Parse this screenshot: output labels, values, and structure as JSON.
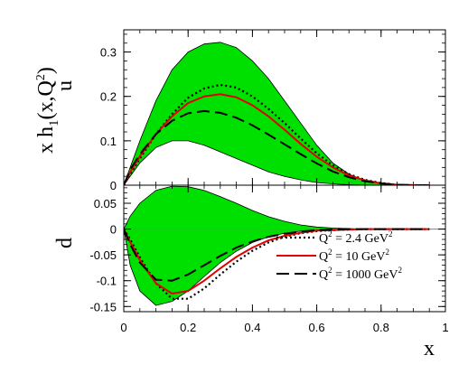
{
  "chart_data": [
    {
      "type": "line",
      "panel": "top",
      "flavor_label": "u",
      "ylabel_main": "x h",
      "ylabel_sub": "1",
      "ylabel_args": "(x,Q",
      "ylabel_sup": "2",
      "ylabel_close": ")",
      "xlim": [
        0,
        1
      ],
      "ylim": [
        0,
        0.35
      ],
      "yticks": [
        0,
        0.1,
        0.2,
        0.3
      ],
      "ytick_labels": [
        "0",
        "0.1",
        "0.2",
        "0.3"
      ],
      "x": [
        0,
        0.02,
        0.05,
        0.1,
        0.15,
        0.2,
        0.25,
        0.3,
        0.35,
        0.4,
        0.45,
        0.5,
        0.55,
        0.6,
        0.65,
        0.7,
        0.75,
        0.8,
        0.85,
        0.9,
        0.95
      ],
      "band": {
        "color": "#00e000",
        "upper": [
          0.0,
          0.04,
          0.1,
          0.19,
          0.26,
          0.3,
          0.318,
          0.322,
          0.31,
          0.28,
          0.24,
          0.19,
          0.14,
          0.09,
          0.05,
          0.025,
          0.01,
          0.004,
          0.001,
          0.0,
          0.0
        ],
        "lower": [
          0.0,
          0.02,
          0.05,
          0.085,
          0.1,
          0.1,
          0.09,
          0.075,
          0.06,
          0.045,
          0.03,
          0.02,
          0.012,
          0.006,
          0.003,
          0.001,
          0.0,
          0.0,
          0.0,
          0.0,
          0.0
        ]
      },
      "series": [
        {
          "style": "dotted",
          "color": "#000000",
          "values": [
            0.0,
            0.025,
            0.06,
            0.115,
            0.16,
            0.197,
            0.218,
            0.226,
            0.22,
            0.2,
            0.172,
            0.14,
            0.105,
            0.072,
            0.045,
            0.025,
            0.012,
            0.005,
            0.001,
            0.0,
            0.0
          ]
        },
        {
          "style": "solid",
          "color": "#e00000",
          "values": [
            0.0,
            0.03,
            0.065,
            0.115,
            0.155,
            0.185,
            0.2,
            0.205,
            0.198,
            0.18,
            0.155,
            0.125,
            0.093,
            0.064,
            0.04,
            0.022,
            0.011,
            0.004,
            0.001,
            0.0,
            0.0
          ]
        },
        {
          "style": "dashed",
          "color": "#000000",
          "values": [
            0.0,
            0.035,
            0.07,
            0.115,
            0.145,
            0.162,
            0.167,
            0.163,
            0.152,
            0.135,
            0.114,
            0.092,
            0.07,
            0.049,
            0.031,
            0.018,
            0.009,
            0.004,
            0.001,
            0.0,
            0.0
          ]
        }
      ]
    },
    {
      "type": "line",
      "panel": "bottom",
      "flavor_label": "d",
      "xlabel": "x",
      "xlim": [
        0,
        1
      ],
      "ylim": [
        -0.16,
        0.085
      ],
      "xticks": [
        0,
        0.2,
        0.4,
        0.6,
        0.8,
        1
      ],
      "xtick_labels": [
        "0",
        "0.2",
        "0.4",
        "0.6",
        "0.8",
        "1"
      ],
      "yticks": [
        -0.15,
        -0.1,
        -0.05,
        0,
        0.05
      ],
      "ytick_labels": [
        "-0.15",
        "-0.1",
        "-0.05",
        "0",
        "0.05"
      ],
      "x": [
        0,
        0.02,
        0.05,
        0.1,
        0.15,
        0.2,
        0.25,
        0.3,
        0.35,
        0.4,
        0.45,
        0.5,
        0.55,
        0.6,
        0.65,
        0.7,
        0.75,
        0.8,
        0.85,
        0.9,
        0.95
      ],
      "band": {
        "color": "#00e000",
        "upper": [
          0.0,
          0.025,
          0.05,
          0.075,
          0.083,
          0.082,
          0.075,
          0.063,
          0.05,
          0.036,
          0.024,
          0.015,
          0.008,
          0.004,
          0.002,
          0.001,
          0.0,
          0.0,
          0.0,
          0.0,
          0.0
        ],
        "lower": [
          0.0,
          -0.07,
          -0.12,
          -0.148,
          -0.14,
          -0.12,
          -0.092,
          -0.065,
          -0.043,
          -0.026,
          -0.015,
          -0.008,
          -0.004,
          -0.002,
          -0.001,
          0.0,
          0.0,
          0.0,
          0.0,
          0.0,
          0.0
        ]
      },
      "series": [
        {
          "name": "Q² = 2.4 GeV²",
          "style": "dotted",
          "color": "#000000",
          "values": [
            0.0,
            -0.02,
            -0.055,
            -0.105,
            -0.135,
            -0.135,
            -0.115,
            -0.088,
            -0.063,
            -0.042,
            -0.026,
            -0.015,
            -0.008,
            -0.004,
            -0.002,
            -0.001,
            0.0,
            0.0,
            0.0,
            0.0,
            0.0
          ]
        },
        {
          "name": "Q² = 10 GeV²",
          "style": "solid",
          "color": "#e00000",
          "values": [
            0.0,
            -0.025,
            -0.06,
            -0.105,
            -0.125,
            -0.12,
            -0.1,
            -0.076,
            -0.054,
            -0.036,
            -0.022,
            -0.013,
            -0.007,
            -0.003,
            -0.002,
            -0.001,
            0.0,
            0.0,
            0.0,
            0.0,
            0.0
          ]
        },
        {
          "name": "Q² = 1000 GeV²",
          "style": "dashed",
          "color": "#000000",
          "values": [
            0.0,
            -0.03,
            -0.065,
            -0.098,
            -0.1,
            -0.088,
            -0.07,
            -0.052,
            -0.036,
            -0.024,
            -0.015,
            -0.009,
            -0.005,
            -0.002,
            -0.001,
            0.0,
            0.0,
            0.0,
            0.0,
            0.0,
            0.0
          ]
        }
      ],
      "legend": {
        "placement": "bottom-right",
        "entries": [
          {
            "q": "Q",
            "qsup": "2",
            "mid": " = 2.4 GeV",
            "unitsup": "2"
          },
          {
            "q": "Q",
            "qsup": "2",
            "mid": " = 10 GeV",
            "unitsup": "2"
          },
          {
            "q": "Q",
            "qsup": "2",
            "mid": " = 1000 GeV",
            "unitsup": "2"
          }
        ]
      }
    }
  ]
}
